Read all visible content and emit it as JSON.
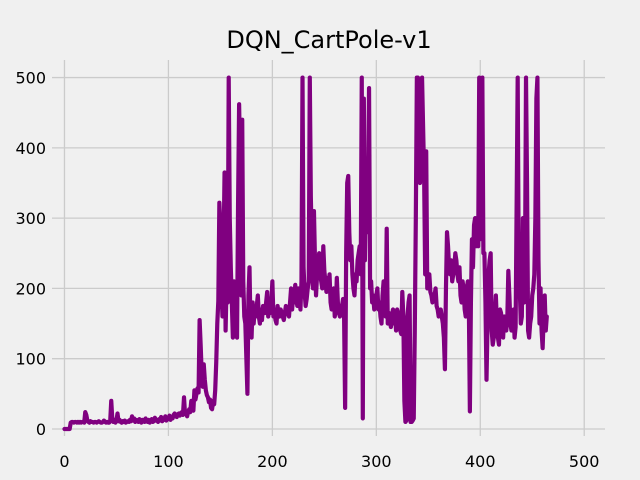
{
  "chart_data": {
    "type": "line",
    "title": "DQN_CartPole-v1",
    "xlabel": "",
    "ylabel": "",
    "xlim": [
      -12,
      520
    ],
    "ylim": [
      -10,
      525
    ],
    "x_ticks": [
      0,
      100,
      200,
      300,
      400,
      500
    ],
    "y_ticks": [
      0,
      100,
      200,
      300,
      400,
      500
    ],
    "grid": true,
    "line_color": "#800080",
    "background_color": "#f0f0f0",
    "series": [
      {
        "x_start": 0,
        "x_step": 1,
        "values": [
          0,
          0,
          0,
          0,
          0,
          0,
          9,
          10,
          10,
          9,
          10,
          10,
          9,
          10,
          9,
          10,
          9,
          10,
          10,
          9,
          24,
          20,
          12,
          10,
          9,
          11,
          10,
          10,
          9,
          10,
          10,
          9,
          10,
          11,
          10,
          9,
          9,
          10,
          12,
          10,
          9,
          10,
          9,
          9,
          11,
          40,
          14,
          10,
          13,
          9,
          12,
          22,
          11,
          13,
          10,
          9,
          11,
          10,
          12,
          9,
          10,
          11,
          10,
          13,
          11,
          18,
          12,
          15,
          10,
          13,
          11,
          10,
          14,
          12,
          9,
          13,
          11,
          10,
          15,
          12,
          10,
          13,
          9,
          12,
          14,
          10,
          11,
          16,
          12,
          13,
          10,
          14,
          12,
          17,
          11,
          15,
          13,
          18,
          12,
          16,
          14,
          19,
          13,
          17,
          15,
          20,
          22,
          18,
          17,
          21,
          22,
          19,
          23,
          24,
          20,
          45,
          21,
          22,
          18,
          25,
          28,
          24,
          40,
          30,
          26,
          55,
          42,
          50,
          58,
          52,
          155,
          120,
          80,
          60,
          92,
          70,
          55,
          48,
          45,
          38,
          42,
          30,
          28,
          40,
          35,
          55,
          95,
          150,
          182,
          322,
          290,
          200,
          160,
          250,
          365,
          140,
          210,
          180,
          500,
          300,
          230,
          180,
          130,
          210,
          175,
          150,
          130,
          320,
          462,
          380,
          190,
          440,
          210,
          160,
          150,
          100,
          50,
          190,
          230,
          140,
          130,
          180,
          150,
          170,
          160,
          175,
          190,
          160,
          150,
          170,
          155,
          175,
          170,
          165,
          180,
          195,
          160,
          170,
          165,
          180,
          210,
          160,
          170,
          155,
          150,
          175,
          165,
          160,
          170,
          165,
          160,
          155,
          165,
          175,
          170,
          165,
          160,
          180,
          200,
          170,
          190,
          180,
          205,
          185,
          175,
          200,
          190,
          170,
          210,
          500,
          230,
          195,
          175,
          185,
          200,
          210,
          500,
          330,
          260,
          200,
          310,
          240,
          190,
          220,
          230,
          250,
          220,
          210,
          200,
          260,
          225,
          210,
          195,
          215,
          200,
          220,
          180,
          170,
          190,
          200,
          160,
          170,
          215,
          180,
          165,
          160,
          170,
          175,
          185,
          160,
          30,
          250,
          350,
          360,
          280,
          240,
          260,
          220,
          200,
          190,
          220,
          210,
          240,
          250,
          260,
          220,
          500,
          15,
          470,
          240,
          350,
          280,
          320,
          485,
          200,
          210,
          180,
          190,
          170,
          180,
          190,
          200,
          170,
          180,
          160,
          150,
          190,
          210,
          170,
          160,
          285,
          150,
          165,
          155,
          145,
          160,
          170,
          150,
          160,
          140,
          170,
          165,
          150,
          140,
          135,
          195,
          160,
          40,
          10,
          12,
          160,
          180,
          190,
          10,
          10,
          12,
          15,
          140,
          300,
          500,
          500,
          490,
          350,
          420,
          500,
          430,
          360,
          220,
          395,
          200,
          210,
          220,
          195,
          190,
          180,
          185,
          190,
          200,
          175,
          170,
          160,
          165,
          170,
          160,
          150,
          130,
          85,
          200,
          280,
          260,
          230,
          220,
          240,
          210,
          220,
          230,
          250,
          240,
          220,
          210,
          230,
          190,
          180,
          210,
          200,
          170,
          160,
          200,
          210,
          180,
          25,
          180,
          270,
          230,
          290,
          300,
          260,
          280,
          260,
          500,
          270,
          310,
          500,
          250,
          250,
          180,
          70,
          150,
          220,
          240,
          250,
          140,
          120,
          130,
          160,
          190,
          150,
          130,
          120,
          170,
          165,
          140,
          130,
          160,
          150,
          140,
          155,
          225,
          190,
          150,
          140,
          160,
          170,
          130,
          145,
          320,
          500,
          230,
          200,
          150,
          160,
          300,
          180,
          210,
          500,
          350,
          140,
          130,
          150,
          160,
          190,
          200,
          220,
          300,
          470,
          500,
          240,
          150,
          200,
          140,
          115,
          160,
          190,
          140,
          160
        ]
      }
    ]
  }
}
